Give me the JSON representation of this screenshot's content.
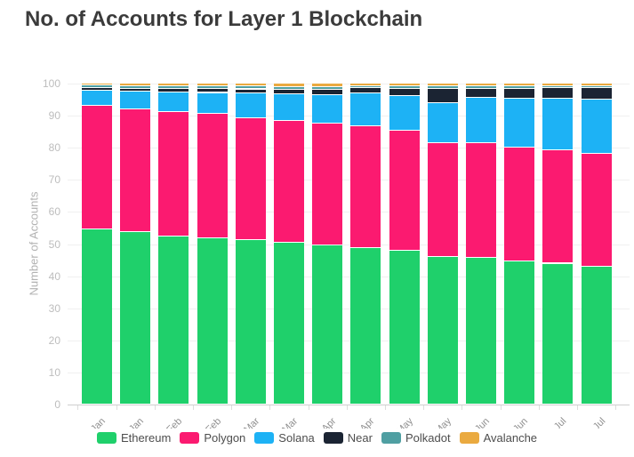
{
  "chart_data": {
    "type": "bar",
    "stacked": true,
    "title": "No. of Accounts for Layer 1 Blockchain",
    "xlabel": "",
    "ylabel": "Number of Accounts",
    "ylim": [
      0,
      100
    ],
    "ytick_step": 10,
    "grid": true,
    "legend_position": "bottom",
    "categories": [
      "Jan",
      "Jan",
      "Feb",
      "Feb",
      "Mar",
      "Mar",
      "Apr",
      "Apr",
      "May",
      "May",
      "Jun",
      "Jun",
      "Jul",
      "Jul"
    ],
    "series": [
      {
        "name": "Ethereum",
        "color": "#1fd06b",
        "values": [
          54.5,
          53.8,
          52.4,
          51.8,
          51.2,
          50.3,
          49.6,
          48.8,
          47.8,
          45.9,
          45.8,
          44.5,
          43.9,
          43.0
        ]
      },
      {
        "name": "Polygon",
        "color": "#fb1a70",
        "values": [
          38.6,
          38.3,
          38.7,
          38.7,
          38.1,
          38.1,
          38.0,
          38.0,
          37.5,
          35.5,
          35.6,
          35.6,
          35.3,
          35.1
        ]
      },
      {
        "name": "Solana",
        "color": "#1db2f5",
        "values": [
          4.7,
          5.5,
          6.2,
          6.6,
          7.6,
          8.3,
          8.8,
          10.2,
          10.9,
          12.4,
          14.1,
          15.2,
          16.1,
          17.0
        ]
      },
      {
        "name": "Near",
        "color": "#1b2433",
        "values": [
          0.7,
          0.8,
          1.0,
          1.2,
          1.3,
          1.4,
          1.6,
          1.5,
          2.2,
          4.6,
          2.9,
          3.1,
          3.2,
          3.4
        ]
      },
      {
        "name": "Polkadot",
        "color": "#4f9fa2",
        "values": [
          0.9,
          0.9,
          0.9,
          0.9,
          0.9,
          0.9,
          1.0,
          0.8,
          0.9,
          0.8,
          0.8,
          0.8,
          0.7,
          0.7
        ]
      },
      {
        "name": "Avalanche",
        "color": "#eaaa40",
        "values": [
          0.6,
          0.7,
          0.8,
          0.8,
          0.9,
          1.0,
          1.0,
          0.7,
          0.7,
          0.8,
          0.8,
          0.8,
          0.8,
          0.8
        ]
      }
    ]
  }
}
